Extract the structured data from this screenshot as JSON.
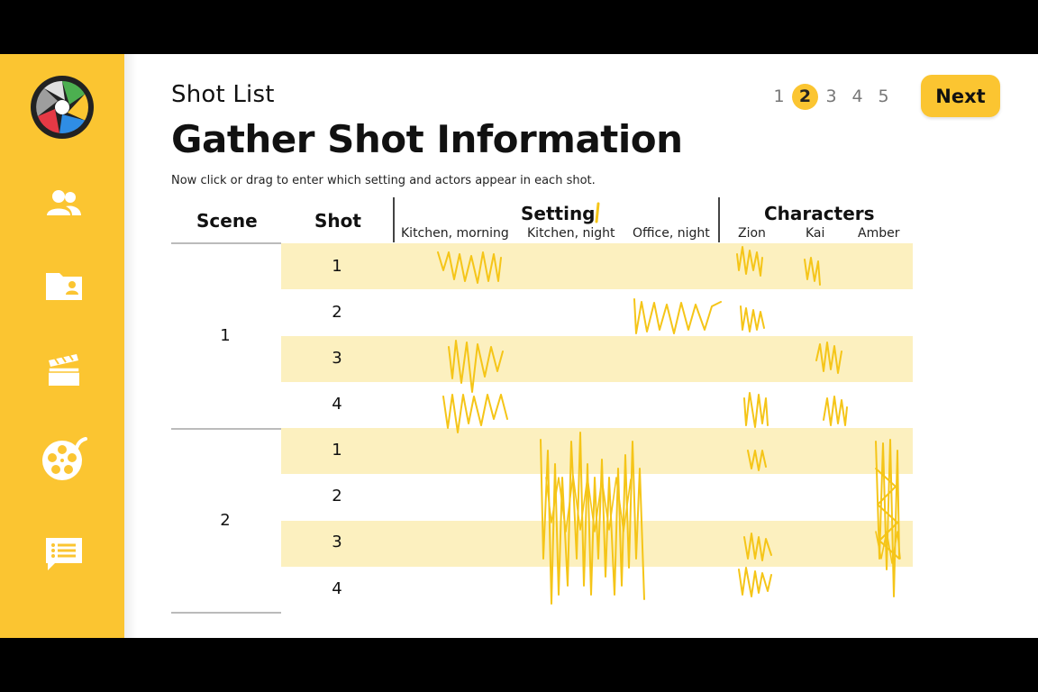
{
  "header": {
    "eyebrow": "Shot List",
    "title": "Gather Shot Information",
    "instruction": "Now click or drag to enter which setting and actors appear in each shot."
  },
  "pager": {
    "pages": [
      "1",
      "2",
      "3",
      "4",
      "5"
    ],
    "active": "2",
    "next_label": "Next"
  },
  "sidebar": {
    "items": [
      {
        "icon": "people-icon"
      },
      {
        "icon": "contact-folder-icon"
      },
      {
        "icon": "clapperboard-icon"
      },
      {
        "icon": "film-reel-icon"
      },
      {
        "icon": "chat-list-icon"
      }
    ]
  },
  "table": {
    "headers": {
      "scene": "Scene",
      "shot": "Shot",
      "setting": "Setting",
      "characters": "Characters"
    },
    "settings": [
      "Kitchen, morning",
      "Kitchen, night",
      "Office, night"
    ],
    "characters": [
      "Zion",
      "Kai",
      "Amber"
    ],
    "scenes": [
      {
        "label": "1",
        "shots": [
          "1",
          "2",
          "3",
          "4"
        ]
      },
      {
        "label": "2",
        "shots": [
          "1",
          "2",
          "3",
          "4"
        ]
      }
    ]
  },
  "colors": {
    "accent": "#fbc531",
    "band": "#fcf0bf",
    "scribble": "#f5c518",
    "logo_segments": [
      "#4caf50",
      "#fbc531",
      "#2f8de4",
      "#e53945",
      "#9e9e9e"
    ]
  }
}
